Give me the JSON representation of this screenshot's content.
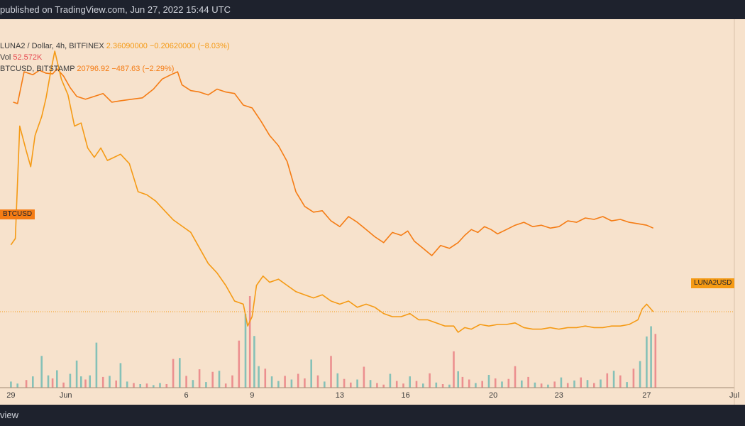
{
  "header": {
    "published_text": "published on TradingView.com, Jun 27, 2022 15:44 UTC"
  },
  "footer": {
    "brand_text": "view"
  },
  "legend": {
    "luna_name": "LUNA2 / Dollar, 4h, BITFINEX",
    "luna_price": "2.36090000",
    "luna_change": "−0.20620000 (−8.03%)",
    "vol_name": "Vol",
    "vol_value": "52.572K",
    "btc_name": "BTCUSD, BITSTAMP",
    "btc_price": "20796.92",
    "btc_change": "−487.63 (−2.29%)"
  },
  "tags": {
    "btc_tag": "BTCUSD",
    "luna_tag": "LUNA2USD"
  },
  "colors": {
    "luna_line": "#f59a14",
    "btc_line": "#f57c14",
    "vol_up": "#85c1b7",
    "vol_down": "#ec8f8f",
    "background": "#f7e2cc",
    "btc_tag_bg": "#f57c14",
    "luna_tag_bg": "#f59a14"
  },
  "chart_data": {
    "type": "line",
    "xlabel": "",
    "ylabel": "",
    "x_ticks": [
      "29",
      "Jun",
      "6",
      "9",
      "13",
      "16",
      "20",
      "23",
      "27",
      "Jul"
    ],
    "x_tick_days": [
      29,
      31.5,
      37,
      40,
      44,
      47,
      51,
      54,
      58,
      62
    ],
    "x_range_days": [
      28.5,
      62
    ],
    "x_axis_note": "days counted from May 1, 2022; Jun 1 = day 32",
    "series": [
      {
        "name": "BTCUSD, BITSTAMP",
        "color": "#f57c14",
        "x": [
          29.1,
          29.3,
          29.6,
          30.0,
          30.3,
          30.6,
          30.9,
          31.1,
          31.4,
          31.7,
          32.0,
          32.4,
          32.8,
          33.2,
          33.6,
          34.0,
          34.5,
          35.0,
          35.5,
          35.9,
          36.3,
          36.6,
          36.8,
          37.2,
          37.6,
          38.0,
          38.4,
          38.8,
          39.2,
          39.6,
          40.0,
          40.4,
          40.8,
          41.2,
          41.6,
          42.0,
          42.4,
          42.8,
          43.2,
          43.6,
          44.0,
          44.4,
          44.8,
          45.2,
          45.6,
          46.0,
          46.4,
          46.8,
          47.1,
          47.4,
          47.8,
          48.2,
          48.6,
          49.0,
          49.4,
          49.7,
          50.0,
          50.3,
          50.6,
          50.9,
          51.2,
          51.6,
          52.0,
          52.4,
          52.8,
          53.2,
          53.6,
          54.0,
          54.4,
          54.8,
          55.2,
          55.6,
          56.0,
          56.4,
          56.8,
          57.2,
          57.6,
          58.0,
          58.3
        ],
        "y": [
          29500,
          29400,
          31600,
          31400,
          31700,
          31500,
          31450,
          31800,
          31300,
          30500,
          29900,
          29700,
          29900,
          30100,
          29500,
          29600,
          29700,
          29800,
          30400,
          31100,
          31400,
          31600,
          30700,
          30300,
          30200,
          30000,
          30400,
          30200,
          30100,
          29300,
          29100,
          28200,
          27200,
          26500,
          25400,
          23300,
          22300,
          21900,
          22000,
          21300,
          20900,
          21600,
          21200,
          20700,
          20200,
          19800,
          20500,
          20300,
          20600,
          19900,
          19400,
          18900,
          19600,
          19400,
          19800,
          20300,
          20700,
          20500,
          20900,
          20700,
          20400,
          20700,
          21000,
          21200,
          20900,
          21000,
          20800,
          20900,
          21300,
          21200,
          21500,
          21400,
          21600,
          21300,
          21400,
          21200,
          21100,
          21000,
          20800
        ]
      },
      {
        "name": "LUNA2 / Dollar, 4h, BITFINEX",
        "color": "#f59a14",
        "x": [
          29.0,
          29.2,
          29.4,
          29.7,
          29.9,
          30.1,
          30.4,
          30.6,
          30.8,
          31.0,
          31.3,
          31.6,
          31.9,
          32.2,
          32.5,
          32.8,
          33.1,
          33.4,
          33.7,
          34.0,
          34.4,
          34.8,
          35.2,
          35.6,
          36.0,
          36.4,
          36.8,
          37.2,
          37.6,
          38.0,
          38.4,
          38.8,
          39.2,
          39.6,
          39.8,
          40.0,
          40.2,
          40.5,
          40.8,
          41.2,
          41.6,
          42.0,
          42.4,
          42.8,
          43.2,
          43.6,
          44.0,
          44.4,
          44.8,
          45.2,
          45.6,
          46.0,
          46.4,
          46.8,
          47.2,
          47.6,
          48.0,
          48.4,
          48.8,
          49.2,
          49.4,
          49.7,
          50.0,
          50.4,
          50.8,
          51.2,
          51.6,
          52.0,
          52.4,
          52.8,
          53.2,
          53.6,
          54.0,
          54.4,
          54.8,
          55.2,
          55.6,
          56.0,
          56.4,
          56.8,
          57.2,
          57.6,
          57.8,
          58.0,
          58.3
        ],
        "y": [
          4.5,
          4.7,
          8.3,
          7.5,
          7.0,
          8.0,
          8.6,
          9.2,
          10.0,
          10.7,
          9.8,
          9.3,
          8.3,
          8.4,
          7.6,
          7.3,
          7.6,
          7.2,
          7.3,
          7.4,
          7.1,
          6.2,
          6.1,
          5.9,
          5.6,
          5.3,
          5.1,
          4.9,
          4.4,
          3.9,
          3.6,
          3.2,
          2.7,
          2.6,
          1.9,
          2.2,
          3.2,
          3.5,
          3.3,
          3.4,
          3.2,
          3.0,
          2.9,
          2.8,
          2.9,
          2.7,
          2.6,
          2.7,
          2.5,
          2.6,
          2.5,
          2.3,
          2.2,
          2.2,
          2.3,
          2.1,
          2.1,
          2.0,
          1.9,
          1.9,
          1.7,
          1.85,
          1.8,
          1.95,
          1.9,
          1.95,
          1.95,
          2.0,
          1.85,
          1.8,
          1.8,
          1.85,
          1.8,
          1.85,
          1.85,
          1.9,
          1.85,
          1.85,
          1.9,
          1.9,
          1.95,
          2.1,
          2.45,
          2.6,
          2.36
        ]
      }
    ],
    "volume": {
      "name": "Vol",
      "last_value": "52.572K",
      "x": [
        29.0,
        29.3,
        29.7,
        30.0,
        30.4,
        30.7,
        30.9,
        31.1,
        31.4,
        31.7,
        32.0,
        32.2,
        32.4,
        32.6,
        32.9,
        33.2,
        33.5,
        33.8,
        34.0,
        34.3,
        34.6,
        34.9,
        35.2,
        35.5,
        35.8,
        36.1,
        36.4,
        36.7,
        37.0,
        37.3,
        37.6,
        37.9,
        38.2,
        38.5,
        38.8,
        39.1,
        39.4,
        39.7,
        39.9,
        40.1,
        40.3,
        40.6,
        40.9,
        41.2,
        41.5,
        41.8,
        42.1,
        42.4,
        42.7,
        43.0,
        43.3,
        43.6,
        43.9,
        44.2,
        44.5,
        44.8,
        45.1,
        45.4,
        45.7,
        46.0,
        46.3,
        46.6,
        46.9,
        47.2,
        47.5,
        47.8,
        48.1,
        48.4,
        48.7,
        49.0,
        49.2,
        49.4,
        49.6,
        49.9,
        50.2,
        50.5,
        50.8,
        51.1,
        51.4,
        51.7,
        52.0,
        52.3,
        52.6,
        52.9,
        53.2,
        53.5,
        53.8,
        54.1,
        54.4,
        54.7,
        55.0,
        55.3,
        55.6,
        55.9,
        56.2,
        56.5,
        56.8,
        57.1,
        57.4,
        57.7,
        58.0,
        58.2,
        58.4
      ],
      "values": [
        1.2,
        0.8,
        1.5,
        2.2,
        6.2,
        2.4,
        1.8,
        3.4,
        1.0,
        2.7,
        5.3,
        2.2,
        1.6,
        2.4,
        8.8,
        2.1,
        2.3,
        1.4,
        4.8,
        1.2,
        0.9,
        0.7,
        0.8,
        0.5,
        0.9,
        0.7,
        5.6,
        5.8,
        2.3,
        1.5,
        3.6,
        1.1,
        3.1,
        3.3,
        0.8,
        2.4,
        9.2,
        14.4,
        17.9,
        10.1,
        4.2,
        3.7,
        2.2,
        1.3,
        2.3,
        1.6,
        2.7,
        1.8,
        5.5,
        2.4,
        1.2,
        6.2,
        2.8,
        1.7,
        1.0,
        1.6,
        4.1,
        1.5,
        0.9,
        0.6,
        2.7,
        1.3,
        0.8,
        2.2,
        1.3,
        0.8,
        2.8,
        1.0,
        0.7,
        0.6,
        7.1,
        3.2,
        2.1,
        1.6,
        0.9,
        1.3,
        2.5,
        1.8,
        1.2,
        1.7,
        4.2,
        1.4,
        2.1,
        1.0,
        0.8,
        0.6,
        1.2,
        2.0,
        0.9,
        1.4,
        2.0,
        1.5,
        0.9,
        1.6,
        2.8,
        3.3,
        2.4,
        1.1,
        3.7,
        5.2,
        10.0,
        12.0,
        10.5
      ],
      "up": [
        true,
        true,
        false,
        true,
        true,
        true,
        false,
        true,
        false,
        true,
        true,
        true,
        false,
        true,
        true,
        false,
        true,
        false,
        true,
        true,
        false,
        true,
        false,
        true,
        true,
        false,
        false,
        true,
        false,
        true,
        false,
        true,
        false,
        true,
        false,
        false,
        false,
        true,
        false,
        true,
        true,
        false,
        true,
        true,
        false,
        true,
        false,
        false,
        true,
        false,
        true,
        false,
        true,
        false,
        false,
        true,
        false,
        true,
        false,
        false,
        true,
        false,
        false,
        true,
        false,
        true,
        false,
        true,
        false,
        true,
        false,
        true,
        false,
        false,
        true,
        false,
        true,
        false,
        true,
        false,
        false,
        true,
        false,
        true,
        false,
        true,
        false,
        true,
        false,
        true,
        false,
        true,
        false,
        true,
        false,
        true,
        false,
        true,
        false,
        true,
        true,
        true,
        false
      ]
    }
  }
}
